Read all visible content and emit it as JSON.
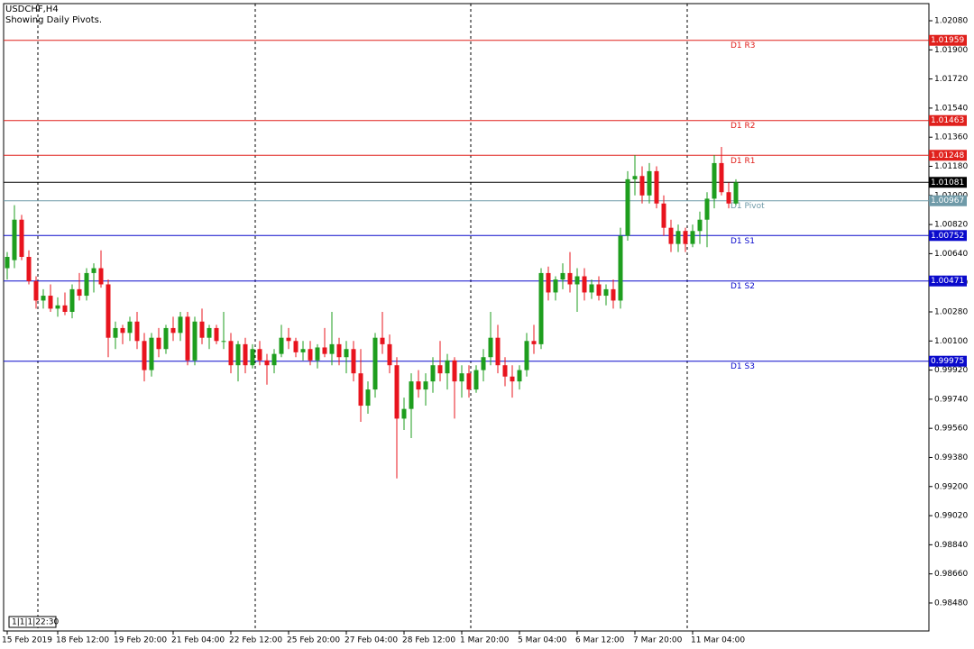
{
  "chart_data": {
    "type": "candlestick",
    "title": "USDCHF,H4",
    "subtitle": "Showing Daily Pivots.",
    "corner_info": "1|1|1|22:30",
    "up_color": "#1e9e1e",
    "down_color": "#e8141e",
    "categories": [
      "15 Feb 2019",
      null,
      null,
      null,
      null,
      null,
      null,
      "18 Feb 12:00",
      null,
      null,
      null,
      null,
      null,
      null,
      null,
      "19 Feb 20:00",
      null,
      null,
      null,
      null,
      null,
      null,
      null,
      "21 Feb 04:00",
      null,
      null,
      null,
      null,
      null,
      null,
      null,
      "22 Feb 12:00",
      null,
      null,
      null,
      null,
      null,
      null,
      null,
      "25 Feb 20:00",
      null,
      null,
      null,
      null,
      null,
      null,
      null,
      "27 Feb 04:00",
      null,
      null,
      null,
      null,
      null,
      null,
      null,
      "28 Feb 12:00",
      null,
      null,
      null,
      null,
      null,
      null,
      null,
      "1 Mar 20:00",
      null,
      null,
      null,
      null,
      null,
      null,
      null,
      "5 Mar 04:00",
      null,
      null,
      null,
      null,
      null,
      null,
      null,
      "6 Mar 12:00",
      null,
      null,
      null,
      null,
      null,
      null,
      null,
      "7 Mar 20:00",
      null,
      null,
      null,
      null,
      null,
      null,
      null,
      "11 Mar 04:00",
      null,
      null,
      null,
      null,
      null,
      null
    ],
    "open": [
      1.0055,
      1.006,
      1.0085,
      1.0062,
      1.0047,
      1.0035,
      1.0038,
      1.003,
      1.0032,
      1.0028,
      1.0042,
      1.0038,
      1.0052,
      1.0055,
      1.0045,
      1.0012,
      1.0018,
      1.0015,
      1.0022,
      1.001,
      0.9992,
      1.0012,
      1.0005,
      1.0018,
      1.0015,
      1.0025,
      0.9998,
      1.0022,
      1.0012,
      1.0018,
      1.001,
      1.001,
      0.9995,
      1.0008,
      0.9995,
      1.0005,
      0.9998,
      0.9995,
      1.0002,
      1.0012,
      1.001,
      1.0003,
      1.0005,
      0.9998,
      1.0006,
      1.0002,
      1.0008,
      1.0,
      1.0005,
      0.999,
      0.997,
      0.998,
      1.0012,
      1.0008,
      0.9995,
      0.9962,
      0.9968,
      0.9985,
      0.998,
      0.9985,
      0.9995,
      0.999,
      0.9998,
      0.9985,
      0.999,
      0.998,
      0.9992,
      1.0,
      1.0012,
      0.9995,
      0.9988,
      0.9985,
      0.9992,
      1.001,
      1.0008,
      1.0052,
      1.004,
      1.0048,
      1.0052,
      1.0045,
      1.005,
      1.004,
      1.0045,
      1.0038,
      1.0042,
      1.0035,
      1.0075,
      1.011,
      1.0112,
      1.01,
      1.0115,
      1.0095,
      1.008,
      1.007,
      1.0078,
      1.007,
      1.0078,
      1.0085,
      1.0098,
      1.012,
      1.0102,
      1.0095
    ],
    "high": [
      1.0065,
      1.0094,
      1.0088,
      1.0066,
      1.005,
      1.0042,
      1.0045,
      1.0037,
      1.004,
      1.0045,
      1.0052,
      1.0055,
      1.0058,
      1.0066,
      1.0048,
      1.0022,
      1.002,
      1.0025,
      1.0028,
      1.0015,
      1.0015,
      1.0018,
      1.002,
      1.0025,
      1.0028,
      1.0028,
      1.0025,
      1.003,
      1.002,
      1.002,
      1.0028,
      1.0015,
      1.001,
      1.0012,
      1.0008,
      1.001,
      1.0002,
      1.0005,
      1.002,
      1.0018,
      1.0012,
      1.001,
      1.001,
      1.0008,
      1.0018,
      1.0028,
      1.0012,
      1.001,
      1.001,
      1.0005,
      0.9985,
      1.0015,
      1.0028,
      1.0014,
      1.0,
      0.9975,
      0.999,
      0.9992,
      0.999,
      1.0,
      1.001,
      1.0002,
      1.0,
      0.9995,
      0.9995,
      0.9995,
      1.0005,
      1.0028,
      1.002,
      1.0,
      0.9995,
      0.9995,
      1.0015,
      1.002,
      1.0055,
      1.0056,
      1.005,
      1.0058,
      1.0065,
      1.0055,
      1.0055,
      1.0048,
      1.005,
      1.0045,
      1.0048,
      1.008,
      1.0115,
      1.0125,
      1.0118,
      1.012,
      1.0118,
      1.01,
      1.0085,
      1.0082,
      1.008,
      1.0082,
      1.009,
      1.0102,
      1.0125,
      1.013,
      1.0108,
      1.011
    ],
    "low": [
      1.0048,
      1.0055,
      1.006,
      1.0045,
      1.003,
      1.003,
      1.0028,
      1.0025,
      1.0026,
      1.0024,
      1.0035,
      1.0035,
      1.004,
      1.0043,
      1.0,
      1.0005,
      1.0008,
      1.001,
      1.0005,
      0.9985,
      0.9988,
      1.0,
      1.0002,
      1.001,
      1.001,
      0.9995,
      0.9995,
      1.0008,
      1.0005,
      1.0008,
      1.0005,
      0.999,
      0.9985,
      0.999,
      0.9993,
      0.9995,
      0.9983,
      0.999,
      1.0,
      1.0005,
      1.0,
      0.9998,
      0.9995,
      0.9993,
      1.0,
      0.9995,
      0.9995,
      0.999,
      0.9985,
      0.996,
      0.9965,
      0.9975,
      1.0002,
      0.999,
      0.9925,
      0.9955,
      0.995,
      0.9975,
      0.997,
      0.9978,
      0.9985,
      0.998,
      0.9962,
      0.9975,
      0.9975,
      0.9978,
      0.9985,
      0.9995,
      0.999,
      0.9982,
      0.9975,
      0.998,
      0.9988,
      1.0002,
      1.0005,
      1.0035,
      1.0035,
      1.0042,
      1.004,
      1.0028,
      1.0035,
      1.0036,
      1.0035,
      1.0032,
      1.003,
      1.003,
      1.0072,
      1.01,
      1.0095,
      1.0095,
      1.0092,
      1.0075,
      1.0065,
      1.0065,
      1.0065,
      1.0068,
      1.007,
      1.0068,
      1.0092,
      1.01,
      1.0092,
      1.0094
    ],
    "close": [
      1.0062,
      1.0085,
      1.0062,
      1.0047,
      1.0035,
      1.0038,
      1.003,
      1.0032,
      1.0028,
      1.0042,
      1.0038,
      1.0052,
      1.0055,
      1.0045,
      1.0012,
      1.0018,
      1.0015,
      1.0022,
      1.001,
      0.9992,
      1.0012,
      1.0005,
      1.0018,
      1.0015,
      1.0025,
      0.9998,
      1.0022,
      1.0012,
      1.0018,
      1.001,
      1.001,
      0.9995,
      1.0008,
      0.9995,
      1.0005,
      0.9998,
      0.9995,
      1.0002,
      1.0012,
      1.001,
      1.0003,
      1.0005,
      0.9998,
      1.0006,
      1.0002,
      1.0008,
      1.0,
      1.0005,
      0.999,
      0.997,
      0.998,
      1.0012,
      1.0008,
      0.9995,
      0.9962,
      0.9968,
      0.9985,
      0.998,
      0.9985,
      0.9995,
      0.999,
      0.9998,
      0.9985,
      0.999,
      0.998,
      0.9992,
      1.0,
      1.0012,
      0.9995,
      0.9988,
      0.9985,
      0.9992,
      1.001,
      1.0008,
      1.0052,
      1.004,
      1.0048,
      1.0052,
      1.0045,
      1.005,
      1.004,
      1.0045,
      1.0038,
      1.0042,
      1.0035,
      1.0075,
      1.011,
      1.0112,
      1.01,
      1.0115,
      1.0095,
      1.008,
      1.007,
      1.0078,
      1.007,
      1.0078,
      1.0085,
      1.0098,
      1.012,
      1.0102,
      1.0095,
      1.01081
    ],
    "ylim": [
      0.98307,
      1.02186
    ],
    "yticks": [
      {
        "value": 1.0208,
        "label": "1.02080"
      },
      {
        "value": 1.019,
        "label": "1.01900"
      },
      {
        "value": 1.0172,
        "label": "1.01720"
      },
      {
        "value": 1.0154,
        "label": "1.01540"
      },
      {
        "value": 1.0136,
        "label": "1.01360"
      },
      {
        "value": 1.0118,
        "label": "1.01180"
      },
      {
        "value": 1.01,
        "label": "1.01000"
      },
      {
        "value": 1.0082,
        "label": "1.00820"
      },
      {
        "value": 1.0064,
        "label": "1.00640"
      },
      {
        "value": 1.0046,
        "label": "1.00460"
      },
      {
        "value": 1.0028,
        "label": "1.00280"
      },
      {
        "value": 1.001,
        "label": "1.00100"
      },
      {
        "value": 0.9992,
        "label": "0.99920"
      },
      {
        "value": 0.9974,
        "label": "0.99740"
      },
      {
        "value": 0.9956,
        "label": "0.99560"
      },
      {
        "value": 0.9938,
        "label": "0.99380"
      },
      {
        "value": 0.992,
        "label": "0.99200"
      },
      {
        "value": 0.9902,
        "label": "0.99020"
      },
      {
        "value": 0.9884,
        "label": "0.98840"
      },
      {
        "value": 0.9866,
        "label": "0.98660"
      },
      {
        "value": 0.9848,
        "label": "0.98480"
      }
    ],
    "levels": [
      {
        "name": "D1 R3",
        "value": 1.01959,
        "color": "#e0201c"
      },
      {
        "name": "D1 R2",
        "value": 1.01463,
        "color": "#e0201c"
      },
      {
        "name": "D1 R1",
        "value": 1.01248,
        "color": "#e0201c"
      },
      {
        "name": "D1 Pivot",
        "value": 1.00967,
        "color": "#6f9aa8"
      },
      {
        "name": "D1 S1",
        "value": 1.00752,
        "color": "#0a0acc"
      },
      {
        "name": "D1 S2",
        "value": 1.00471,
        "color": "#0a0acc"
      },
      {
        "name": "D1 S3",
        "value": 0.99975,
        "color": "#0a0acc"
      }
    ],
    "price": {
      "value": 1.01081,
      "color": "#000000"
    }
  }
}
